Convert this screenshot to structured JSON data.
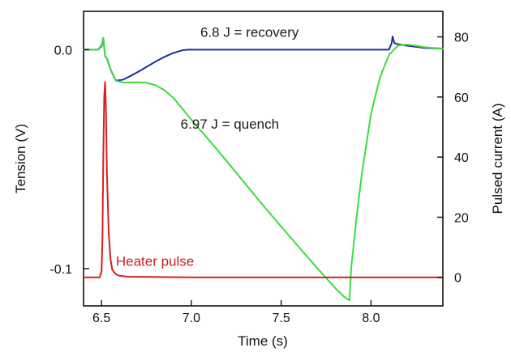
{
  "chart_data": {
    "type": "line",
    "xlabel": "Time (s)",
    "ylabel": "Tension (V)",
    "ylabel_right": "Pulsed current (A)",
    "xlim": [
      6.4,
      8.4
    ],
    "ylim": [
      -0.117,
      0.0175
    ],
    "ylim_right": [
      -9.5,
      88.5
    ],
    "x_ticks": [
      {
        "value": 6.5,
        "label": "6.5"
      },
      {
        "value": 7.0,
        "label": "7.0"
      },
      {
        "value": 7.5,
        "label": "7.5"
      },
      {
        "value": 8.0,
        "label": "8.0"
      }
    ],
    "y_ticks": [
      {
        "value": 0.0,
        "label": "0.0"
      },
      {
        "value": -0.1,
        "label": "-0.1"
      }
    ],
    "y_ticks_right": [
      {
        "value": 0,
        "label": "0"
      },
      {
        "value": 20,
        "label": "20"
      },
      {
        "value": 40,
        "label": "40"
      },
      {
        "value": 60,
        "label": "60"
      },
      {
        "value": 80,
        "label": "80"
      }
    ],
    "grid": false,
    "annotations": [
      {
        "text": "6.8 J  =  recovery",
        "x": 7.05,
        "y": 0.0058,
        "color": "#1a1a1a"
      },
      {
        "text": "6.97 J = quench",
        "x": 6.94,
        "y": -0.036,
        "color": "#1a1a1a"
      },
      {
        "text": "Heater pulse",
        "x": 6.58,
        "y": -0.0987,
        "color": "#cc1f1f"
      }
    ],
    "series": [
      {
        "axis": "left",
        "color": "#1a2fa8",
        "x": [
          6.4,
          6.48,
          6.5,
          6.51,
          6.52,
          6.53,
          6.55,
          6.58,
          6.62,
          6.65,
          6.7,
          6.75,
          6.8,
          6.85,
          6.9,
          6.95,
          6.98,
          7.0,
          7.5,
          8.0,
          8.1,
          8.115,
          8.12,
          8.13,
          8.15,
          8.2,
          8.3,
          8.4
        ],
        "y": [
          0.0,
          0.0,
          0.0015,
          0.005,
          -0.003,
          -0.004,
          -0.009,
          -0.0142,
          -0.0137,
          -0.0125,
          -0.0103,
          -0.0079,
          -0.0055,
          -0.0033,
          -0.0015,
          -0.0003,
          0.0,
          0.0,
          0.0,
          0.0,
          0.0,
          0.003,
          0.006,
          0.003,
          0.0025,
          0.0018,
          0.0008,
          0.0005
        ]
      },
      {
        "axis": "left",
        "color": "#3ddc3d",
        "x": [
          6.4,
          6.48,
          6.5,
          6.51,
          6.52,
          6.53,
          6.55,
          6.58,
          6.62,
          6.65,
          6.7,
          6.75,
          6.8,
          6.85,
          6.9,
          7.0,
          7.1,
          7.2,
          7.3,
          7.4,
          7.5,
          7.6,
          7.7,
          7.8,
          7.85,
          7.88,
          7.89,
          7.92,
          7.95,
          8.0,
          8.05,
          8.1,
          8.15,
          8.2,
          8.25,
          8.3,
          8.4
        ],
        "y": [
          0.0,
          0.0,
          0.002,
          0.0055,
          -0.003,
          -0.004,
          -0.009,
          -0.0142,
          -0.015,
          -0.015,
          -0.0149,
          -0.0151,
          -0.0162,
          -0.0185,
          -0.022,
          -0.032,
          -0.0415,
          -0.0512,
          -0.0612,
          -0.0712,
          -0.0808,
          -0.0903,
          -0.0997,
          -0.1088,
          -0.1128,
          -0.1145,
          -0.0995,
          -0.0762,
          -0.0561,
          -0.0294,
          -0.0126,
          -0.0024,
          0.0019,
          0.0023,
          0.0018,
          0.0011,
          0.0004
        ]
      },
      {
        "axis": "right",
        "color": "#d42121",
        "x": [
          6.4,
          6.49,
          6.5,
          6.505,
          6.51,
          6.515,
          6.52,
          6.525,
          6.53,
          6.54,
          6.55,
          6.56,
          6.58,
          6.6,
          6.65,
          7.0,
          7.5,
          8.0,
          8.4
        ],
        "y": [
          0.0,
          0.0,
          2.0,
          12.0,
          40.0,
          60.0,
          65.0,
          55.0,
          35.0,
          15.0,
          6.0,
          2.5,
          1.0,
          0.5,
          0.2,
          0.0,
          0.0,
          0.0,
          0.0
        ]
      }
    ]
  }
}
